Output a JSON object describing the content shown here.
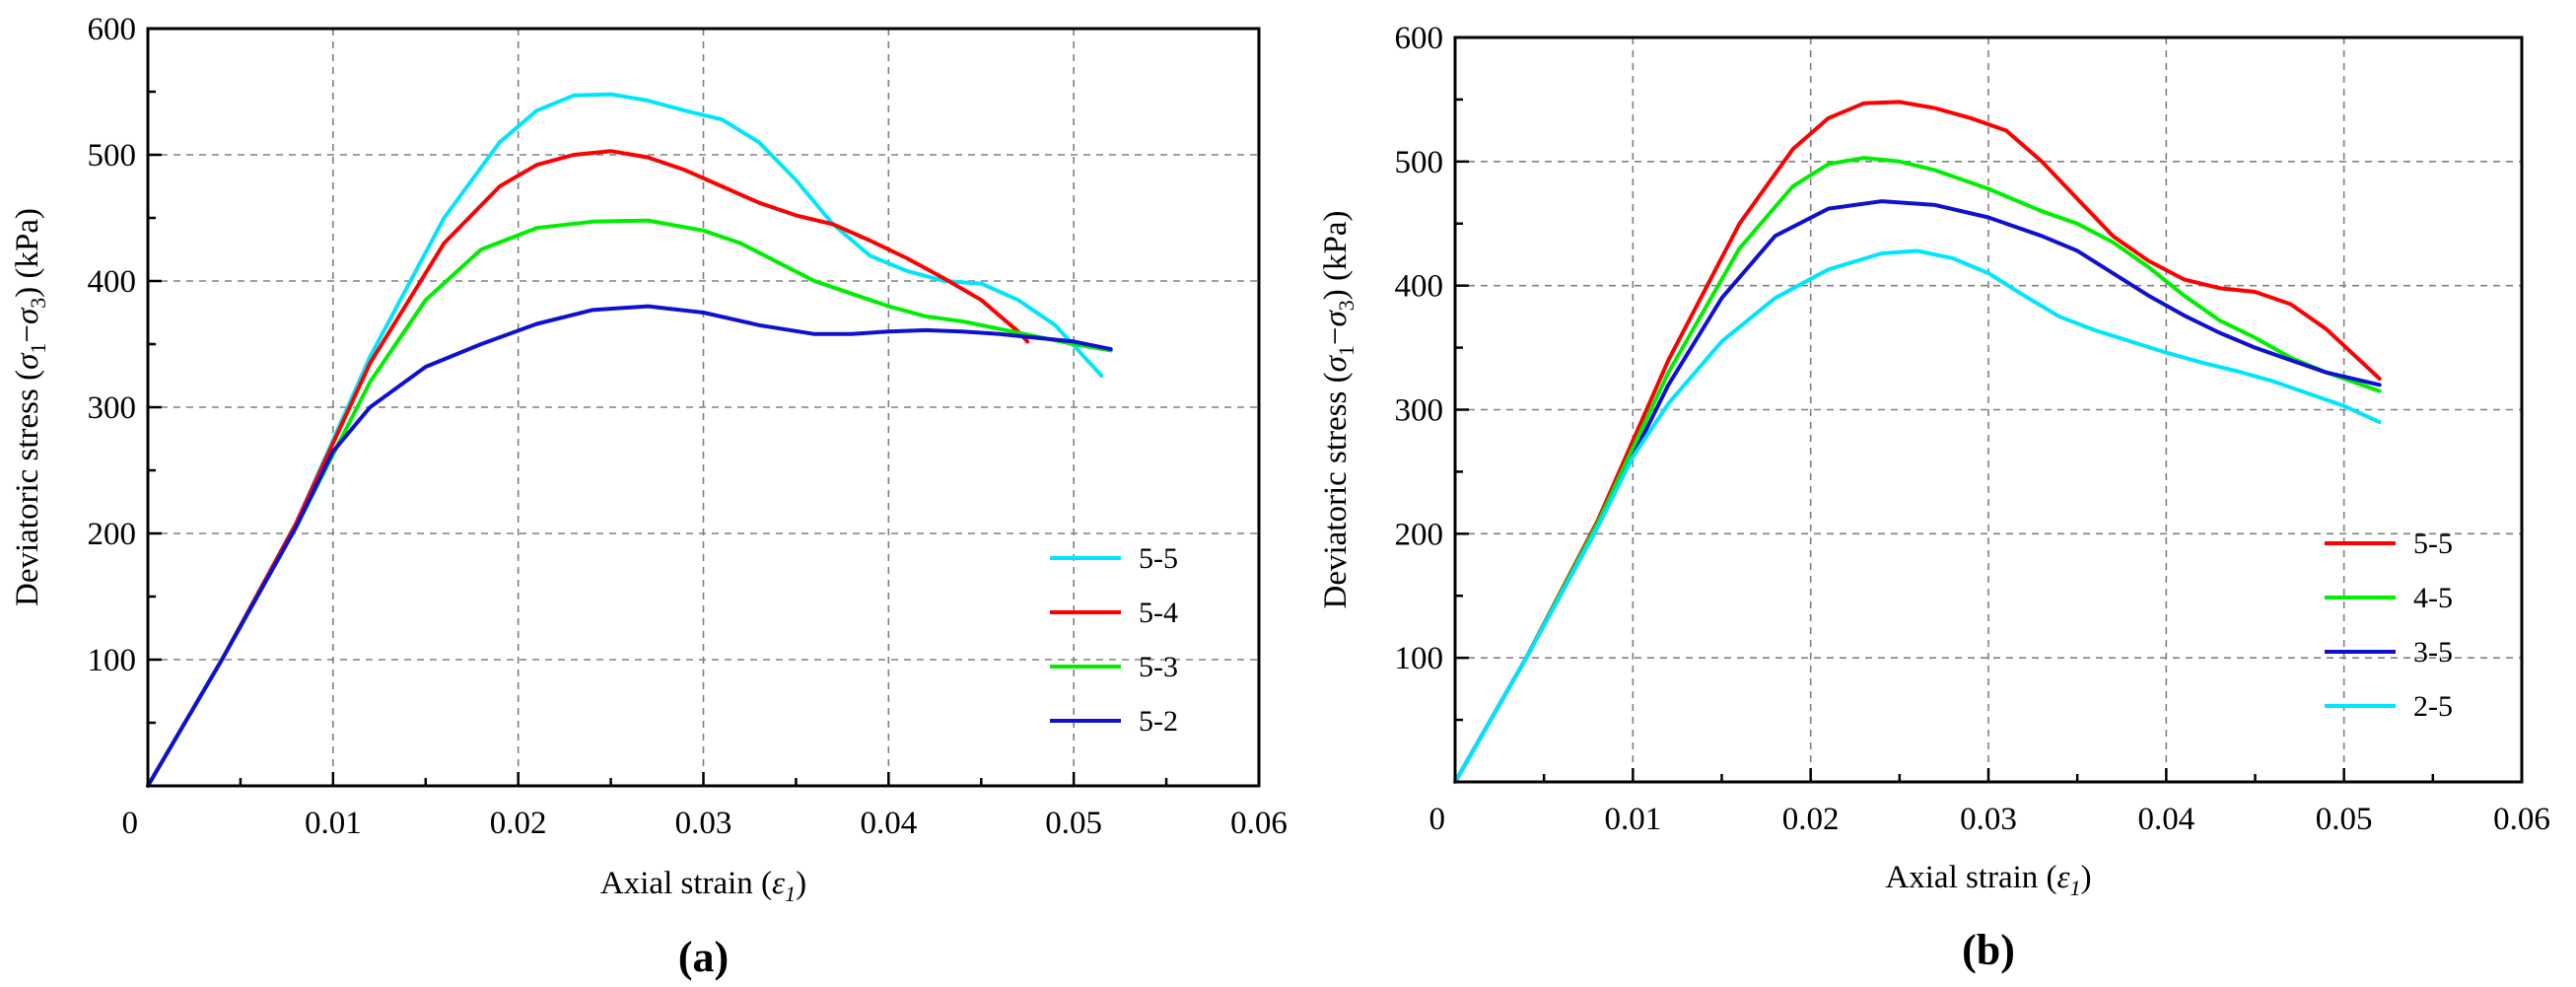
{
  "chart_data": [
    {
      "type": "line",
      "panel_label": "(a)",
      "xlabel": "Axial strain",
      "xlabel_symbol": "ε",
      "xlabel_sub": "1",
      "ylabel": "Deviatoric stress",
      "ylabel_sym1": "σ",
      "ylabel_sub1": "1",
      "ylabel_minus": "−",
      "ylabel_sym2": "σ",
      "ylabel_sub2": "3",
      "ylabel_unit": "(kPa)",
      "xlim": [
        0,
        0.06
      ],
      "ylim": [
        0,
        600
      ],
      "xticks": [
        0.01,
        0.02,
        0.03,
        0.04,
        0.05,
        0.06
      ],
      "xtick_labels": [
        "0.01",
        "0.02",
        "0.03",
        "0.04",
        "0.05",
        "0.06"
      ],
      "yticks": [
        100,
        200,
        300,
        400,
        500,
        600
      ],
      "ytick_labels": [
        "100",
        "200",
        "300",
        "400",
        "500",
        "600"
      ],
      "origin_label": "0",
      "grid": true,
      "legend_position": "lower-right",
      "series": [
        {
          "name": "5-5",
          "color": "#00e5ff",
          "x": [
            0,
            0.004,
            0.008,
            0.012,
            0.016,
            0.019,
            0.021,
            0.023,
            0.025,
            0.027,
            0.029,
            0.031,
            0.033,
            0.035,
            0.037,
            0.039,
            0.041,
            0.043,
            0.045,
            0.047,
            0.049,
            0.0515
          ],
          "y": [
            0,
            100,
            208,
            340,
            450,
            510,
            535,
            547,
            548,
            543,
            535,
            528,
            510,
            480,
            445,
            420,
            408,
            400,
            398,
            385,
            365,
            325
          ]
        },
        {
          "name": "5-4",
          "color": "#ff0000",
          "x": [
            0,
            0.004,
            0.008,
            0.012,
            0.016,
            0.019,
            0.021,
            0.023,
            0.025,
            0.027,
            0.029,
            0.031,
            0.033,
            0.035,
            0.037,
            0.039,
            0.041,
            0.043,
            0.045,
            0.047,
            0.0475
          ],
          "y": [
            0,
            100,
            208,
            335,
            430,
            475,
            492,
            500,
            503,
            498,
            488,
            475,
            462,
            452,
            445,
            432,
            418,
            402,
            385,
            360,
            352
          ]
        },
        {
          "name": "5-3",
          "color": "#00ee00",
          "x": [
            0,
            0.004,
            0.008,
            0.012,
            0.015,
            0.018,
            0.021,
            0.024,
            0.027,
            0.03,
            0.032,
            0.034,
            0.036,
            0.038,
            0.04,
            0.042,
            0.044,
            0.046,
            0.048,
            0.05,
            0.052
          ],
          "y": [
            0,
            100,
            205,
            320,
            385,
            425,
            442,
            447,
            448,
            440,
            430,
            415,
            400,
            390,
            380,
            372,
            368,
            362,
            356,
            350,
            345
          ]
        },
        {
          "name": "5-2",
          "color": "#1010d0",
          "x": [
            0,
            0.004,
            0.008,
            0.01,
            0.012,
            0.015,
            0.018,
            0.021,
            0.024,
            0.027,
            0.03,
            0.033,
            0.036,
            0.038,
            0.04,
            0.042,
            0.044,
            0.046,
            0.048,
            0.05,
            0.052
          ],
          "y": [
            0,
            100,
            205,
            265,
            300,
            332,
            350,
            366,
            377,
            380,
            375,
            365,
            358,
            358,
            360,
            361,
            360,
            358,
            355,
            352,
            346
          ]
        }
      ]
    },
    {
      "type": "line",
      "panel_label": "(b)",
      "xlabel": "Axial strain",
      "xlabel_symbol": "ε",
      "xlabel_sub": "1",
      "ylabel": "Deviatoric stress",
      "ylabel_sym1": "σ",
      "ylabel_sub1": "1",
      "ylabel_minus": "−",
      "ylabel_sym2": "σ",
      "ylabel_sub2": "3",
      "ylabel_unit": "(kPa)",
      "xlim": [
        0,
        0.06
      ],
      "ylim": [
        0,
        600
      ],
      "xticks": [
        0.01,
        0.02,
        0.03,
        0.04,
        0.05,
        0.06
      ],
      "xtick_labels": [
        "0.01",
        "0.02",
        "0.03",
        "0.04",
        "0.05",
        "0.06"
      ],
      "yticks": [
        100,
        200,
        300,
        400,
        500,
        600
      ],
      "ytick_labels": [
        "100",
        "200",
        "300",
        "400",
        "500",
        "600"
      ],
      "origin_label": "0",
      "grid": true,
      "legend_position": "lower-right",
      "series": [
        {
          "name": "5-5",
          "color": "#ff0000",
          "x": [
            0,
            0.004,
            0.008,
            0.012,
            0.016,
            0.019,
            0.021,
            0.023,
            0.025,
            0.027,
            0.029,
            0.031,
            0.033,
            0.035,
            0.037,
            0.039,
            0.041,
            0.043,
            0.045,
            0.047,
            0.049,
            0.052
          ],
          "y": [
            0,
            100,
            210,
            340,
            450,
            510,
            535,
            547,
            548,
            543,
            535,
            525,
            500,
            470,
            440,
            420,
            405,
            398,
            395,
            385,
            365,
            325
          ]
        },
        {
          "name": "4-5",
          "color": "#00ee00",
          "x": [
            0,
            0.004,
            0.008,
            0.012,
            0.016,
            0.019,
            0.021,
            0.023,
            0.025,
            0.027,
            0.03,
            0.033,
            0.035,
            0.037,
            0.039,
            0.041,
            0.043,
            0.045,
            0.047,
            0.049,
            0.052
          ],
          "y": [
            0,
            100,
            208,
            330,
            430,
            480,
            498,
            503,
            500,
            493,
            478,
            460,
            450,
            435,
            415,
            392,
            372,
            358,
            342,
            330,
            315
          ]
        },
        {
          "name": "3-5",
          "color": "#1010d0",
          "x": [
            0,
            0.004,
            0.008,
            0.012,
            0.015,
            0.018,
            0.021,
            0.024,
            0.027,
            0.03,
            0.033,
            0.035,
            0.037,
            0.039,
            0.041,
            0.043,
            0.045,
            0.047,
            0.049,
            0.052
          ],
          "y": [
            0,
            100,
            205,
            320,
            390,
            440,
            462,
            468,
            465,
            455,
            440,
            428,
            410,
            392,
            376,
            362,
            350,
            340,
            330,
            320
          ]
        },
        {
          "name": "2-5",
          "color": "#00e5ff",
          "x": [
            0,
            0.004,
            0.008,
            0.01,
            0.012,
            0.015,
            0.018,
            0.021,
            0.024,
            0.026,
            0.028,
            0.03,
            0.032,
            0.034,
            0.036,
            0.038,
            0.04,
            0.042,
            0.044,
            0.046,
            0.048,
            0.05,
            0.052
          ],
          "y": [
            0,
            100,
            205,
            262,
            305,
            355,
            390,
            413,
            426,
            428,
            422,
            410,
            392,
            375,
            364,
            355,
            346,
            338,
            331,
            323,
            313,
            303,
            290
          ]
        }
      ]
    }
  ]
}
